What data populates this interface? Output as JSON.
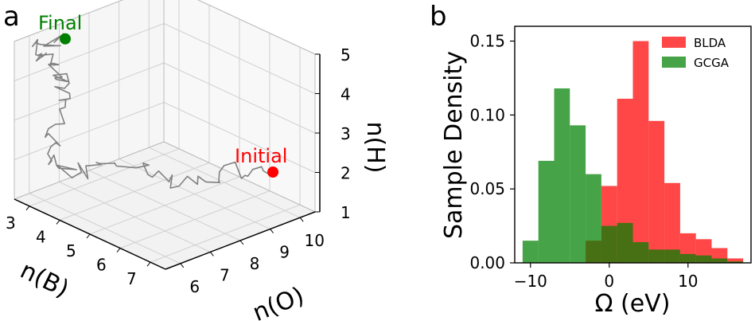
{
  "chart_data": [
    {
      "panel_label": "a",
      "type": "line3d",
      "xlabel": "n(B)",
      "ylabel": "n(O)",
      "zlabel": "n(H)",
      "x_ticks": [
        "3",
        "4",
        "5",
        "6",
        "7"
      ],
      "y_ticks": [
        "6",
        "7",
        "8",
        "9",
        "10"
      ],
      "z_ticks": [
        "1",
        "2",
        "3",
        "4",
        "5"
      ],
      "xlim": [
        2.5,
        7.5
      ],
      "ylim": [
        5.5,
        10.5
      ],
      "zlim": [
        1,
        5
      ],
      "grid": true,
      "annotations": [
        {
          "text": "Final",
          "color": "#008000"
        },
        {
          "text": "Initial",
          "color": "#ff0000"
        }
      ],
      "markers": [
        {
          "name": "Final",
          "x": 2.7,
          "y": 7.0,
          "z": 4.7,
          "color": "#008000"
        },
        {
          "name": "Initial",
          "x": 6.7,
          "y": 9.9,
          "z": 1.9,
          "color": "#ff0000"
        }
      ],
      "path_color": "#808080"
    },
    {
      "panel_label": "b",
      "type": "histogram",
      "xlabel": "Ω (eV)",
      "ylabel": "Sample Density",
      "xlim": [
        -12,
        18
      ],
      "ylim": [
        0,
        0.16
      ],
      "x_ticks": [
        -10,
        0,
        10
      ],
      "y_ticks": [
        "0.00",
        "0.05",
        "0.10",
        "0.15"
      ],
      "legend_position": "top-right",
      "bin_edges": [
        -11,
        -9,
        -7,
        -5,
        -3,
        -1,
        1,
        3,
        5,
        7,
        9,
        11,
        13,
        15,
        17
      ],
      "series": [
        {
          "name": "BLDA",
          "color": "#ff0000",
          "values": [
            0,
            0,
            0,
            0,
            0.015,
            0.052,
            0.111,
            0.15,
            0.096,
            0.054,
            0.02,
            0.016,
            0.01,
            0.003
          ]
        },
        {
          "name": "GCGA",
          "color": "#008000",
          "values": [
            0.015,
            0.069,
            0.118,
            0.093,
            0.06,
            0.025,
            0.027,
            0.014,
            0.009,
            0.009,
            0.006,
            0.005,
            0.003,
            0.001
          ]
        }
      ]
    }
  ]
}
